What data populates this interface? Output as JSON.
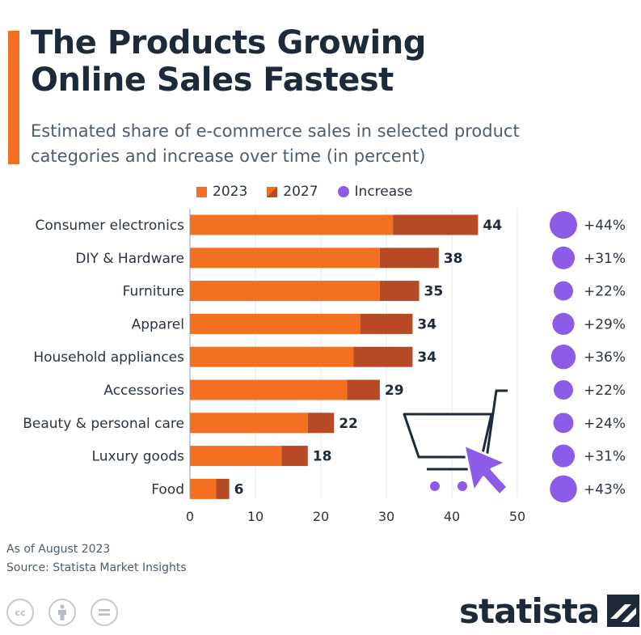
{
  "header": {
    "title_line1": "The Products Growing",
    "title_line2": "Online Sales Fastest",
    "subtitle_line1": "Estimated share of e-commerce sales in selected product",
    "subtitle_line2": "categories and increase over time (in percent)"
  },
  "legend": {
    "item_2023": "2023",
    "item_2027": "2027",
    "item_increase": "Increase"
  },
  "colors": {
    "accent": "#f36f21",
    "bar_2023": "#f36f21",
    "bar_2027": "#b74a25",
    "increase": "#8c5ce8",
    "text_dark": "#1e2a3a",
    "text_muted": "#4e5d6c"
  },
  "chart_data": {
    "type": "bar",
    "orientation": "horizontal",
    "title": "The Products Growing Online Sales Fastest",
    "subtitle": "Estimated share of e-commerce sales in selected product categories and increase over time (in percent)",
    "categories": [
      "Consumer electronics",
      "DIY & Hardware",
      "Furniture",
      "Apparel",
      "Household appliances",
      "Accessories",
      "Beauty & personal care",
      "Luxury goods",
      "Food"
    ],
    "series": [
      {
        "name": "2023",
        "values": [
          31,
          29,
          29,
          26,
          25,
          24,
          18,
          14,
          4
        ]
      },
      {
        "name": "2027",
        "values": [
          44,
          38,
          35,
          34,
          34,
          29,
          22,
          18,
          6
        ]
      }
    ],
    "value_labels": [
      "44",
      "38",
      "35",
      "34",
      "34",
      "29",
      "22",
      "18",
      "6"
    ],
    "increase": {
      "name": "Increase",
      "values": [
        44,
        31,
        22,
        29,
        36,
        22,
        24,
        31,
        43
      ],
      "labels": [
        "+44%",
        "+31%",
        "+22%",
        "+29%",
        "+36%",
        "+22%",
        "+24%",
        "+31%",
        "+43%"
      ]
    },
    "xlim": [
      0,
      50
    ],
    "xticks": [
      "0",
      "10",
      "20",
      "30",
      "40",
      "50"
    ],
    "grid": true,
    "legend_position": "top"
  },
  "footer": {
    "note": "As of August 2023",
    "source": "Source: Statista Market Insights",
    "brand": "statista",
    "license_icons": [
      "cc-icon",
      "attribution-icon",
      "no-derivatives-icon"
    ]
  }
}
